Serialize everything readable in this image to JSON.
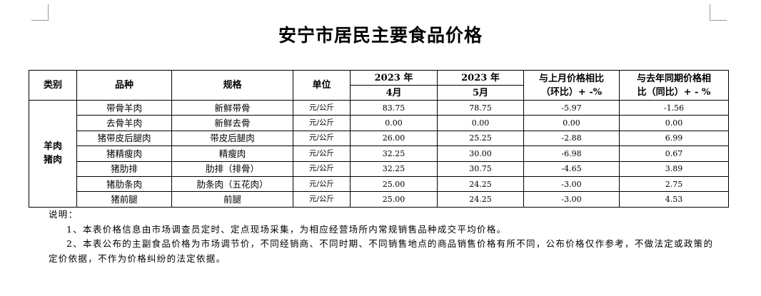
{
  "title": "安宁市居民主要食品价格",
  "table": {
    "header": {
      "category": "类别",
      "variety": "品种",
      "spec": "规格",
      "unit": "单位",
      "year_prev": "2023 年",
      "month_prev": "4月",
      "year_cur": "2023 年",
      "month_cur": "5月",
      "mom": [
        "与上月价格相比",
        "（环比）+ -%"
      ],
      "yoy": [
        "与去年同期价格相",
        "比（同比）+ - %"
      ]
    },
    "category": [
      "羊肉",
      "猪肉"
    ],
    "rows": [
      [
        "带骨羊肉",
        "新鲜带骨",
        "元/公斤",
        "83.75",
        "78.75",
        "-5.97",
        "-1.56"
      ],
      [
        "去骨羊肉",
        "新鲜去骨",
        "元/公斤",
        "0.00",
        "0.00",
        "0.00",
        "0.00"
      ],
      [
        "猪带皮后腿肉",
        "带皮后腿肉",
        "元/公斤",
        "26.00",
        "25.25",
        "-2.88",
        "6.99"
      ],
      [
        "猪精瘦肉",
        "精瘦肉",
        "元/公斤",
        "32.25",
        "30.00",
        "-6.98",
        "0.67"
      ],
      [
        "猪肋排",
        "肋排（排骨）",
        "元/公斤",
        "32.25",
        "30.75",
        "-4.65",
        "3.89"
      ],
      [
        "猪肋条肉",
        "肋条肉（五花肉）",
        "元/公斤",
        "25.00",
        "24.25",
        "-3.00",
        "2.75"
      ],
      [
        "猪前腿",
        "前腿",
        "元/公斤",
        "25.00",
        "24.25",
        "-3.00",
        "4.53"
      ]
    ]
  },
  "notes": {
    "heading": "说明：",
    "items": [
      "1、本表价格信息由市场调查员定时、定点现场采集，为相应经营场所内常规销售品种成交平均价格。",
      "2、本表公布的主副食品价格为市场调节价，不同经销商、不同时期、不同销售地点的商品销售价格有所不同，公布价格仅作参考，不做法定或政策的定价依据，不作为价格纠纷的法定依据。"
    ]
  }
}
